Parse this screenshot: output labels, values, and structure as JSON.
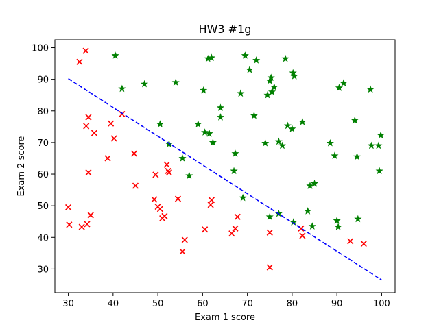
{
  "chart_data": {
    "type": "scatter",
    "title": "HW3 #1g",
    "xlabel": "Exam 1 score",
    "ylabel": "Exam 2 score",
    "xlim": [
      27,
      103
    ],
    "ylim": [
      22.5,
      102.5
    ],
    "xticks": [
      30,
      40,
      50,
      60,
      70,
      80,
      90,
      100
    ],
    "yticks": [
      30,
      40,
      50,
      60,
      70,
      80,
      90,
      100
    ],
    "grid": false,
    "colors": {
      "admitted": "#008000",
      "not_admitted": "#ff0000",
      "boundary": "#0000ff"
    },
    "series": [
      {
        "marker": "star",
        "color": "#008000",
        "points": [
          [
            40.5,
            97.5
          ],
          [
            42.0,
            87.0
          ],
          [
            47.0,
            88.5
          ],
          [
            54.0,
            89.0
          ],
          [
            50.5,
            75.8
          ],
          [
            52.5,
            69.5
          ],
          [
            55.5,
            65.0
          ],
          [
            57.0,
            59.5
          ],
          [
            59.0,
            75.8
          ],
          [
            60.2,
            86.5
          ],
          [
            60.5,
            73.2
          ],
          [
            61.5,
            72.8
          ],
          [
            61.2,
            96.5
          ],
          [
            62.0,
            96.8
          ],
          [
            62.3,
            70.0
          ],
          [
            64.0,
            81.0
          ],
          [
            64.0,
            78.0
          ],
          [
            67.0,
            61.0
          ],
          [
            67.3,
            66.5
          ],
          [
            68.5,
            85.5
          ],
          [
            69.0,
            52.5
          ],
          [
            69.5,
            97.5
          ],
          [
            70.5,
            93.0
          ],
          [
            71.5,
            78.5
          ],
          [
            72.0,
            96.0
          ],
          [
            74.0,
            69.8
          ],
          [
            74.5,
            85.0
          ],
          [
            75.0,
            89.5
          ],
          [
            75.3,
            90.5
          ],
          [
            75.5,
            86.0
          ],
          [
            76.0,
            87.5
          ],
          [
            75.0,
            46.5
          ],
          [
            77.0,
            47.5
          ],
          [
            77.0,
            70.3
          ],
          [
            77.8,
            69.0
          ],
          [
            78.5,
            96.5
          ],
          [
            79.0,
            75.3
          ],
          [
            80.0,
            74.3
          ],
          [
            80.2,
            92.0
          ],
          [
            80.5,
            91.0
          ],
          [
            80.3,
            44.8
          ],
          [
            82.3,
            76.5
          ],
          [
            83.5,
            48.3
          ],
          [
            84.0,
            56.3
          ],
          [
            84.5,
            43.5
          ],
          [
            85.0,
            57.0
          ],
          [
            88.5,
            69.8
          ],
          [
            89.5,
            65.8
          ],
          [
            90.0,
            45.3
          ],
          [
            90.3,
            43.3
          ],
          [
            90.5,
            87.3
          ],
          [
            91.5,
            88.8
          ],
          [
            94.0,
            77.0
          ],
          [
            94.5,
            65.5
          ],
          [
            94.7,
            45.8
          ],
          [
            97.5,
            86.8
          ],
          [
            97.7,
            69.0
          ],
          [
            99.3,
            69.0
          ],
          [
            99.5,
            61.0
          ],
          [
            99.8,
            72.3
          ]
        ]
      },
      {
        "marker": "x",
        "color": "#ff0000",
        "points": [
          [
            30.0,
            49.5
          ],
          [
            30.2,
            44.0
          ],
          [
            32.5,
            95.5
          ],
          [
            33.0,
            43.3
          ],
          [
            33.9,
            99.0
          ],
          [
            34.0,
            75.2
          ],
          [
            34.2,
            44.2
          ],
          [
            34.5,
            60.5
          ],
          [
            34.5,
            78.0
          ],
          [
            35.0,
            47.0
          ],
          [
            35.8,
            73.0
          ],
          [
            38.8,
            65.0
          ],
          [
            39.5,
            76.0
          ],
          [
            40.2,
            71.3
          ],
          [
            42.0,
            79.0
          ],
          [
            44.7,
            66.5
          ],
          [
            45.0,
            56.3
          ],
          [
            49.2,
            52.0
          ],
          [
            49.5,
            59.8
          ],
          [
            50.0,
            49.7
          ],
          [
            50.5,
            49.0
          ],
          [
            51.0,
            46.0
          ],
          [
            51.5,
            46.7
          ],
          [
            52.0,
            63.0
          ],
          [
            52.3,
            61.0
          ],
          [
            52.5,
            60.5
          ],
          [
            54.5,
            52.2
          ],
          [
            55.5,
            35.5
          ],
          [
            56.0,
            39.2
          ],
          [
            60.5,
            42.5
          ],
          [
            61.8,
            50.3
          ],
          [
            62.0,
            51.8
          ],
          [
            66.5,
            41.2
          ],
          [
            67.3,
            42.8
          ],
          [
            67.8,
            46.5
          ],
          [
            75.0,
            41.5
          ],
          [
            75.0,
            30.5
          ],
          [
            82.0,
            42.8
          ],
          [
            82.3,
            40.5
          ],
          [
            93.0,
            38.8
          ],
          [
            96.0,
            38.0
          ]
        ]
      }
    ],
    "boundary": {
      "style": "dashed",
      "color": "#0000ff",
      "x": [
        30,
        100
      ],
      "y": [
        90.2,
        26.5
      ]
    }
  }
}
